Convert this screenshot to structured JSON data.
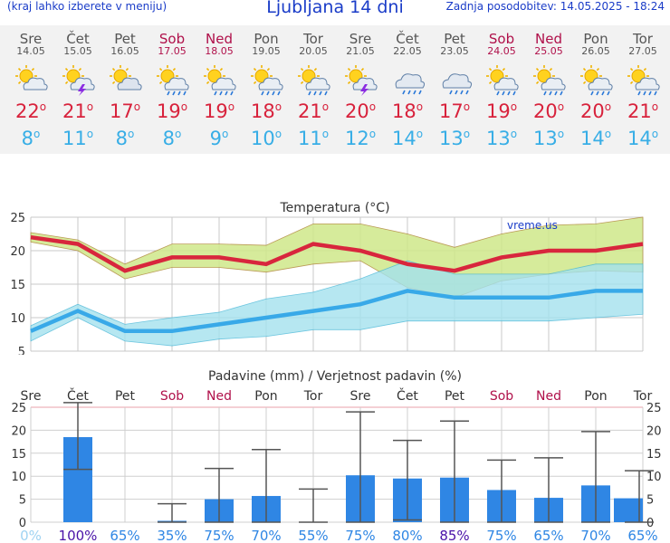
{
  "header": {
    "menu_hint": "(kraj lahko izberete v meniju)",
    "title": "Ljubljana 14 dni",
    "updated": "Zadnja posodobitev: 14.05.2025 - 18:24"
  },
  "colors": {
    "max": "#d8263d",
    "min": "#38a9e8",
    "max_band": "#cfe88a",
    "min_band": "#a4e2ee",
    "bar": "#2f86e4",
    "weekend": "#b0104a",
    "prob_dark": "#4a13a8",
    "prob_light": "#9fd3f2"
  },
  "days": [
    {
      "name": "Sre",
      "date": "14.05",
      "weekend": false,
      "icon": "partly-sunny-icon",
      "tmax": "22",
      "tmin": "8"
    },
    {
      "name": "Čet",
      "date": "15.05",
      "weekend": false,
      "icon": "sun-cloud-thunder-icon",
      "tmax": "21",
      "tmin": "11"
    },
    {
      "name": "Pet",
      "date": "16.05",
      "weekend": false,
      "icon": "mostly-cloudy-icon",
      "tmax": "17",
      "tmin": "8"
    },
    {
      "name": "Sob",
      "date": "17.05",
      "weekend": true,
      "icon": "sun-cloud-rain-icon",
      "tmax": "19",
      "tmin": "8"
    },
    {
      "name": "Ned",
      "date": "18.05",
      "weekend": true,
      "icon": "sun-cloud-rain-icon",
      "tmax": "19",
      "tmin": "9"
    },
    {
      "name": "Pon",
      "date": "19.05",
      "weekend": false,
      "icon": "sun-cloud-rain-icon",
      "tmax": "18",
      "tmin": "10"
    },
    {
      "name": "Tor",
      "date": "20.05",
      "weekend": false,
      "icon": "sun-cloud-rain-icon",
      "tmax": "21",
      "tmin": "11"
    },
    {
      "name": "Sre",
      "date": "21.05",
      "weekend": false,
      "icon": "sun-cloud-thunder-icon",
      "tmax": "20",
      "tmin": "12"
    },
    {
      "name": "Čet",
      "date": "22.05",
      "weekend": false,
      "icon": "cloud-rain-icon",
      "tmax": "18",
      "tmin": "14"
    },
    {
      "name": "Pet",
      "date": "23.05",
      "weekend": false,
      "icon": "cloud-rain-icon",
      "tmax": "17",
      "tmin": "13"
    },
    {
      "name": "Sob",
      "date": "24.05",
      "weekend": true,
      "icon": "sun-cloud-rain-icon",
      "tmax": "19",
      "tmin": "13"
    },
    {
      "name": "Ned",
      "date": "25.05",
      "weekend": true,
      "icon": "sun-cloud-rain-icon",
      "tmax": "20",
      "tmin": "13"
    },
    {
      "name": "Pon",
      "date": "26.05",
      "weekend": false,
      "icon": "sun-cloud-rain-icon",
      "tmax": "20",
      "tmin": "14"
    },
    {
      "name": "Tor",
      "date": "27.05",
      "weekend": false,
      "icon": "sun-cloud-rain-icon",
      "tmax": "21",
      "tmin": "14"
    }
  ],
  "chart_data": [
    {
      "type": "line",
      "title": "Temperatura (°C)",
      "watermark": "vreme.us",
      "x": [
        "14.05",
        "15.05",
        "16.05",
        "17.05",
        "18.05",
        "19.05",
        "20.05",
        "21.05",
        "22.05",
        "23.05",
        "24.05",
        "25.05",
        "26.05",
        "27.05"
      ],
      "ylim": [
        5,
        25
      ],
      "yticks": [
        5,
        10,
        15,
        20,
        25
      ],
      "grid": true,
      "series": [
        {
          "values": [
            22,
            21,
            17,
            19,
            19,
            18,
            21,
            20,
            18,
            17,
            19,
            20,
            20,
            21
          ]
        },
        {
          "values": [
            8,
            11,
            8,
            8,
            9,
            10,
            11,
            12,
            14,
            13,
            13,
            13,
            14,
            14
          ]
        }
      ],
      "bands": [
        {
          "upper": [
            22.7,
            21.6,
            18,
            21,
            21,
            20.8,
            24,
            24,
            22.5,
            20.5,
            22.5,
            23.8,
            24,
            25
          ],
          "lower": [
            21.3,
            20,
            15.8,
            17.5,
            17.5,
            16.8,
            18,
            18.5,
            14.5,
            13,
            15.5,
            16.5,
            17,
            16.8
          ]
        },
        {
          "upper": [
            8.8,
            12,
            9,
            10,
            10.8,
            12.8,
            13.8,
            15.8,
            18.5,
            16.5,
            16.5,
            16.5,
            18,
            18
          ],
          "lower": [
            6.5,
            10,
            6.5,
            5.8,
            6.8,
            7.2,
            8.2,
            8.2,
            9.5,
            9.5,
            9.5,
            9.5,
            10,
            10.5
          ]
        }
      ]
    },
    {
      "type": "bar",
      "title": "Padavine (mm) / Verjetnost padavin (%)",
      "categories": [
        "Sre",
        "Čet",
        "Pet",
        "Sob",
        "Ned",
        "Pon",
        "Tor",
        "Sre",
        "Čet",
        "Pet",
        "Sob",
        "Ned",
        "Pon",
        "Tor"
      ],
      "ylim": [
        0,
        25
      ],
      "yticks": [
        0,
        5,
        10,
        15,
        20,
        25
      ],
      "values": [
        0,
        18.5,
        0,
        0.3,
        5,
        5.7,
        0,
        10.2,
        9.5,
        9.7,
        7,
        5.3,
        8,
        5.2
      ],
      "error_low": [
        0,
        11.5,
        0,
        0,
        0,
        0,
        0,
        0,
        0.5,
        0,
        0,
        0,
        0,
        0
      ],
      "error_high": [
        0,
        26,
        0,
        4,
        11.7,
        15.8,
        7.2,
        24,
        17.8,
        22,
        13.5,
        14,
        19.7,
        11.2
      ],
      "probability": [
        "0%",
        "100%",
        "65%",
        "35%",
        "75%",
        "70%",
        "55%",
        "75%",
        "80%",
        "85%",
        "75%",
        "65%",
        "70%",
        "65%"
      ],
      "grid": true
    }
  ]
}
